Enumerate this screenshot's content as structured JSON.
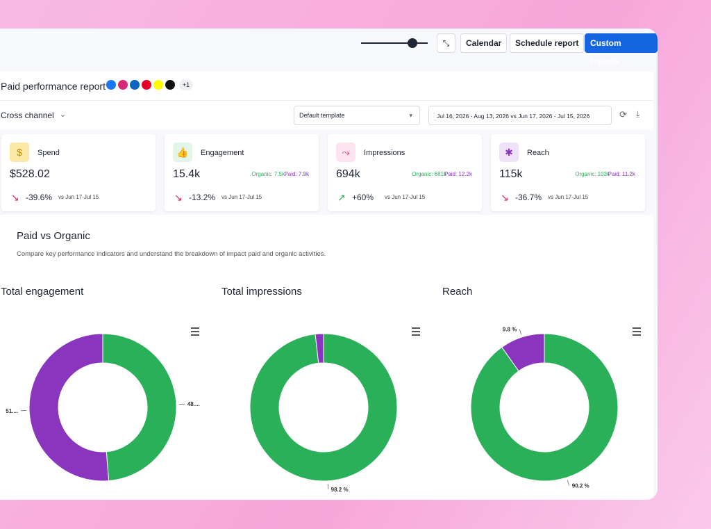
{
  "toolbar": {
    "buttons": [
      "Calendar",
      "Schedule report",
      "Custom reports"
    ]
  },
  "report": {
    "title": "Paid performance report",
    "extra_networks": "+1",
    "channel": "Cross channel",
    "template": "Default template",
    "date_range": "Jul 16, 2026 - Aug 13, 2026 vs Jun 17, 2026 - Jul 15, 2026"
  },
  "kpis": [
    {
      "label": "Spend",
      "value": "$528.02",
      "change": "-39.6%",
      "compare": "vs Jun 17-Jul 15"
    },
    {
      "label": "Engagement",
      "value": "15.4k",
      "organic": "Organic: 7.5k",
      "paid": "Paid: 7.9k",
      "change": "-13.2%",
      "compare": "vs Jun 17-Jul 15"
    },
    {
      "label": "Impressions",
      "value": "694k",
      "organic": "Organic: 681k",
      "paid": "Paid: 12.2k",
      "change": "+60%",
      "compare": "vs Jun 17-Jul 15"
    },
    {
      "label": "Reach",
      "value": "115k",
      "organic": "Organic: 103k",
      "paid": "Paid: 11.2k",
      "change": "-36.7%",
      "compare": "vs Jun 17-Jul 15"
    }
  ],
  "section": {
    "title": "Paid vs Organic",
    "description": "Compare key performance indicators and understand the breakdown of impact paid and organic activities."
  },
  "chart_data": [
    {
      "type": "donut",
      "title": "Total engagement",
      "values": [
        48.7,
        51.3
      ],
      "value_labels": [
        "48....",
        "51...."
      ],
      "colors": [
        "#2bb05a",
        "#8a35bd"
      ]
    },
    {
      "type": "donut",
      "title": "Total impressions",
      "values": [
        98.2,
        1.8
      ],
      "value_labels": [
        "98.2 %",
        null
      ],
      "colors": [
        "#2bb05a",
        "#8a35bd"
      ]
    },
    {
      "type": "donut",
      "title": "Reach",
      "values": [
        90.2,
        9.8
      ],
      "value_labels": [
        "90.2 %",
        "9.8 %"
      ],
      "colors": [
        "#2bb05a",
        "#8a35bd"
      ]
    }
  ]
}
